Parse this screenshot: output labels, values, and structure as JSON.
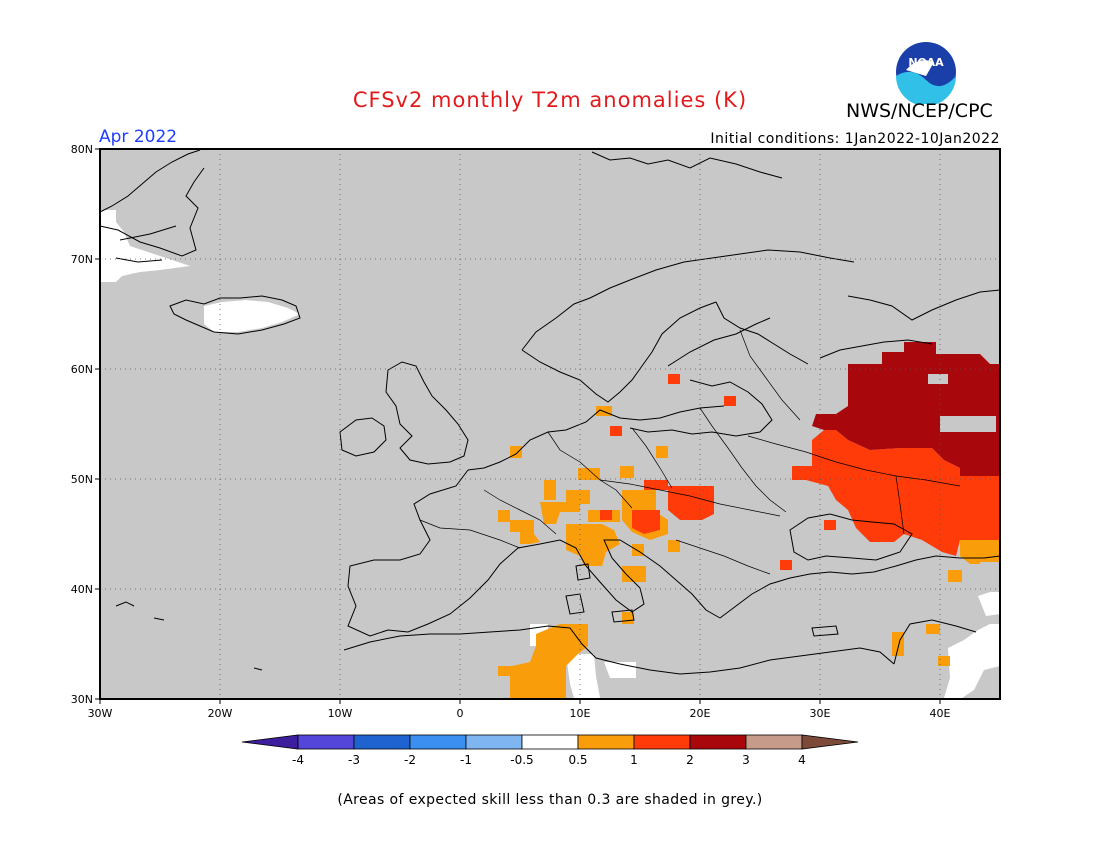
{
  "header": {
    "title": "CFSv2 monthly T2m anomalies (K)",
    "agency": "NWS/NCEP/CPC",
    "logo_text": "NOAA",
    "period": "Apr 2022",
    "initial_conditions": "Initial conditions: 1Jan2022-10Jan2022"
  },
  "map": {
    "lon_range": [
      -30,
      45
    ],
    "lat_range": [
      30,
      80
    ],
    "grid": "dotted",
    "lat_ticks": [
      "30N",
      "40N",
      "50N",
      "60N",
      "70N",
      "80N"
    ],
    "lon_ticks": [
      "30W",
      "20W",
      "10W",
      "0",
      "10E",
      "20E",
      "30E",
      "40E"
    ],
    "background_skill_color": "#c8c8c8"
  },
  "colorbar": {
    "bins": [
      {
        "color": "#3d1f9e"
      },
      {
        "color": "#5346d9"
      },
      {
        "color": "#1f63d1"
      },
      {
        "color": "#3a8ff0"
      },
      {
        "color": "#7fb6f2"
      },
      {
        "color": "#ffffff"
      },
      {
        "color": "#f99e0a"
      },
      {
        "color": "#ff3b0a"
      },
      {
        "color": "#a8070c"
      },
      {
        "color": "#c79b8a"
      },
      {
        "color": "#7d4a3a"
      }
    ],
    "labels": [
      "-4",
      "-3",
      "-2",
      "-1",
      "-0.5",
      "0.5",
      "1",
      "2",
      "3",
      "4"
    ]
  },
  "footnote": "(Areas of expected skill less than 0.3 are shaded in grey.)"
}
